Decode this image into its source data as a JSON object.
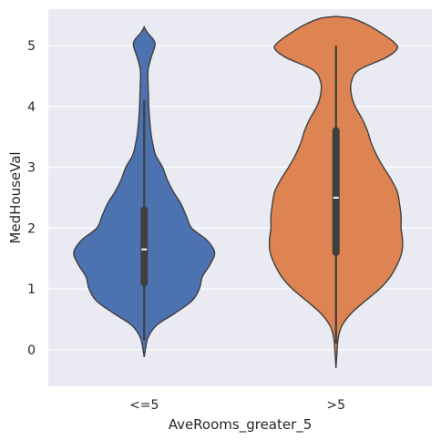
{
  "chart_data": {
    "type": "violin",
    "title": "",
    "xlabel": "AveRooms_greater_5",
    "ylabel": "MedHouseVal",
    "categories": [
      "<=5",
      ">5"
    ],
    "ylim": [
      -0.6,
      5.6
    ],
    "yticks": [
      0,
      1,
      2,
      3,
      4,
      5
    ],
    "grid": true,
    "background": "#eaeaf2",
    "colors": [
      "#4c72b0",
      "#dd8452"
    ],
    "violins": [
      {
        "category": "<=5",
        "color": "#4c72b0",
        "quartiles": {
          "q1": 1.1,
          "median": 1.65,
          "q3": 2.3
        },
        "whiskers": [
          0.15,
          4.1
        ],
        "profile": [
          [
            -0.12,
            0.0
          ],
          [
            0.0,
            0.015
          ],
          [
            0.2,
            0.05
          ],
          [
            0.4,
            0.16
          ],
          [
            0.6,
            0.4
          ],
          [
            0.8,
            0.62
          ],
          [
            1.0,
            0.72
          ],
          [
            1.2,
            0.76
          ],
          [
            1.4,
            0.86
          ],
          [
            1.6,
            0.92
          ],
          [
            1.8,
            0.82
          ],
          [
            2.0,
            0.62
          ],
          [
            2.2,
            0.55
          ],
          [
            2.4,
            0.48
          ],
          [
            2.6,
            0.38
          ],
          [
            2.8,
            0.3
          ],
          [
            3.0,
            0.24
          ],
          [
            3.2,
            0.15
          ],
          [
            3.4,
            0.11
          ],
          [
            3.6,
            0.085
          ],
          [
            3.8,
            0.07
          ],
          [
            4.0,
            0.06
          ],
          [
            4.2,
            0.055
          ],
          [
            4.4,
            0.05
          ],
          [
            4.6,
            0.05
          ],
          [
            4.8,
            0.09
          ],
          [
            5.0,
            0.14
          ],
          [
            5.1,
            0.12
          ],
          [
            5.2,
            0.05
          ],
          [
            5.3,
            0.0
          ]
        ]
      },
      {
        "category": ">5",
        "color": "#dd8452",
        "quartiles": {
          "q1": 1.6,
          "median": 2.5,
          "q3": 3.6
        },
        "whiskers": [
          0.1,
          5.0
        ],
        "profile": [
          [
            -0.3,
            0.0
          ],
          [
            -0.1,
            0.01
          ],
          [
            0.2,
            0.03
          ],
          [
            0.4,
            0.08
          ],
          [
            0.6,
            0.2
          ],
          [
            0.8,
            0.38
          ],
          [
            1.0,
            0.57
          ],
          [
            1.2,
            0.71
          ],
          [
            1.4,
            0.8
          ],
          [
            1.6,
            0.86
          ],
          [
            1.8,
            0.87
          ],
          [
            2.0,
            0.85
          ],
          [
            2.2,
            0.85
          ],
          [
            2.4,
            0.83
          ],
          [
            2.6,
            0.8
          ],
          [
            2.8,
            0.72
          ],
          [
            3.0,
            0.62
          ],
          [
            3.2,
            0.53
          ],
          [
            3.4,
            0.46
          ],
          [
            3.6,
            0.41
          ],
          [
            3.8,
            0.34
          ],
          [
            4.0,
            0.25
          ],
          [
            4.2,
            0.2
          ],
          [
            4.4,
            0.2
          ],
          [
            4.6,
            0.3
          ],
          [
            4.8,
            0.65
          ],
          [
            4.95,
            0.8
          ],
          [
            5.05,
            0.76
          ],
          [
            5.2,
            0.6
          ],
          [
            5.35,
            0.4
          ],
          [
            5.45,
            0.2
          ],
          [
            5.48,
            0.0
          ]
        ]
      }
    ]
  }
}
